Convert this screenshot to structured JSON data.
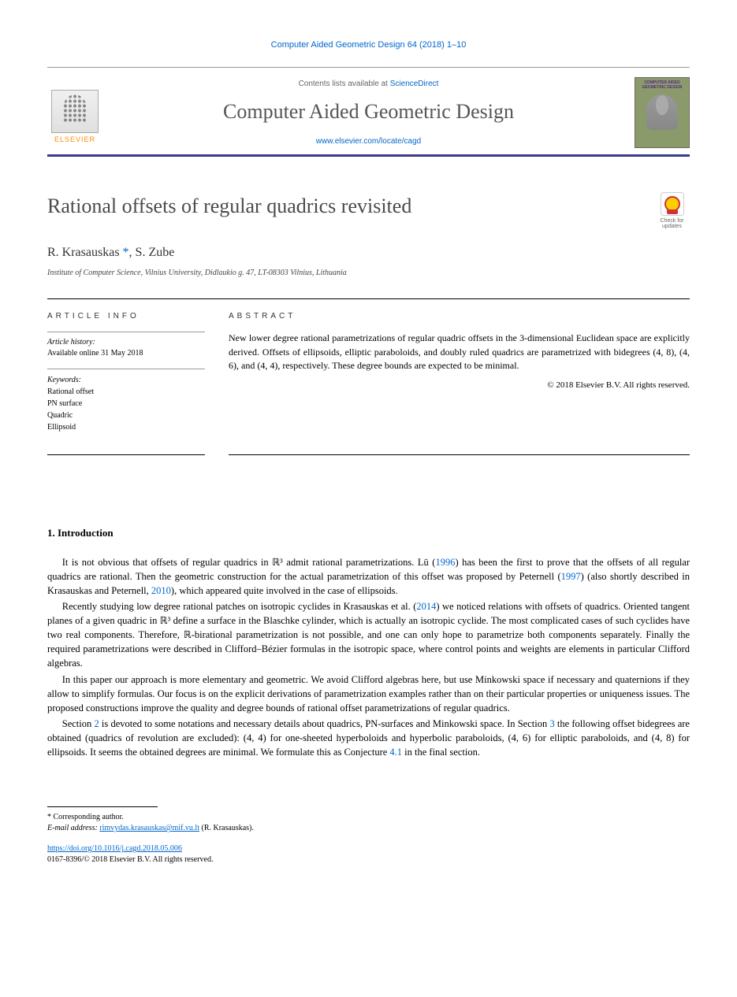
{
  "header": {
    "top_citation": "Computer Aided Geometric Design 64 (2018) 1–10",
    "contents_prefix": "Contents lists available at ",
    "contents_link": "ScienceDirect",
    "journal_name": "Computer Aided Geometric Design",
    "journal_url": "www.elsevier.com/locate/cagd",
    "publisher": "ELSEVIER",
    "cover_text": "COMPUTER AIDED GEOMETRIC DESIGN"
  },
  "article": {
    "title": "Rational offsets of regular quadrics revisited",
    "check_updates": "Check for updates",
    "authors": "R. Krasauskas *, S. Zube",
    "affiliation": "Institute of Computer Science, Vilnius University, Didlaukio g. 47, LT-08303 Vilnius, Lithuania"
  },
  "info": {
    "label": "ARTICLE INFO",
    "history_label": "Article history:",
    "history_text": "Available online 31 May 2018",
    "keywords_label": "Keywords:",
    "keywords": [
      "Rational offset",
      "PN surface",
      "Quadric",
      "Ellipsoid"
    ]
  },
  "abstract": {
    "label": "ABSTRACT",
    "text": "New lower degree rational parametrizations of regular quadric offsets in the 3-dimensional Euclidean space are explicitly derived. Offsets of ellipsoids, elliptic paraboloids, and doubly ruled quadrics are parametrized with bidegrees (4, 8), (4, 6), and (4, 4), respectively. These degree bounds are expected to be minimal.",
    "copyright": "© 2018 Elsevier B.V. All rights reserved."
  },
  "sections": {
    "intro_heading": "1. Introduction",
    "para1_a": "It is not obvious that offsets of regular quadrics in ℝ³ admit rational parametrizations. Lü (",
    "para1_ref1": "1996",
    "para1_b": ") has been the first to prove that the offsets of all regular quadrics are rational. Then the geometric construction for the actual parametrization of this offset was proposed by Peternell (",
    "para1_ref2": "1997",
    "para1_c": ") (also shortly described in Krasauskas and Peternell, ",
    "para1_ref3": "2010",
    "para1_d": "), which appeared quite involved in the case of ellipsoids.",
    "para2_a": "Recently studying low degree rational patches on isotropic cyclides in Krasauskas et al. (",
    "para2_ref1": "2014",
    "para2_b": ") we noticed relations with offsets of quadrics. Oriented tangent planes of a given quadric in ℝ³ define a surface in the Blaschke cylinder, which is actually an isotropic cyclide. The most complicated cases of such cyclides have two real components. Therefore, ℝ-birational parametrization is not possible, and one can only hope to parametrize both components separately. Finally the required parametrizations were described in Clifford–Bézier formulas in the isotropic space, where control points and weights are elements in particular Clifford algebras.",
    "para3": "In this paper our approach is more elementary and geometric. We avoid Clifford algebras here, but use Minkowski space if necessary and quaternions if they allow to simplify formulas. Our focus is on the explicit derivations of parametrization examples rather than on their particular properties or uniqueness issues. The proposed constructions improve the quality and degree bounds of rational offset parametrizations of regular quadrics.",
    "para4_a": "Section ",
    "para4_ref1": "2",
    "para4_b": " is devoted to some notations and necessary details about quadrics, PN-surfaces and Minkowski space. In Section ",
    "para4_ref2": "3",
    "para4_c": " the following offset bidegrees are obtained (quadrics of revolution are excluded): (4, 4) for one-sheeted hyperboloids and hyperbolic paraboloids, (4, 6) for elliptic paraboloids, and (4, 8) for ellipsoids. It seems the obtained degrees are minimal. We formulate this as Conjecture ",
    "para4_ref3": "4.1",
    "para4_d": " in the final section."
  },
  "footer": {
    "corr_label": "* Corresponding author.",
    "email_label": "E-mail address: ",
    "email": "rimvydas.krasauskas@mif.vu.lt",
    "email_suffix": " (R. Krasauskas).",
    "doi": "https://doi.org/10.1016/j.cagd.2018.05.006",
    "issn_line": "0167-8396/© 2018 Elsevier B.V. All rights reserved."
  },
  "colors": {
    "link": "#0066cc",
    "band_border": "#3a3a8a",
    "elsevier_orange": "#ff8c00",
    "cover_bg": "#8a9a6a"
  }
}
